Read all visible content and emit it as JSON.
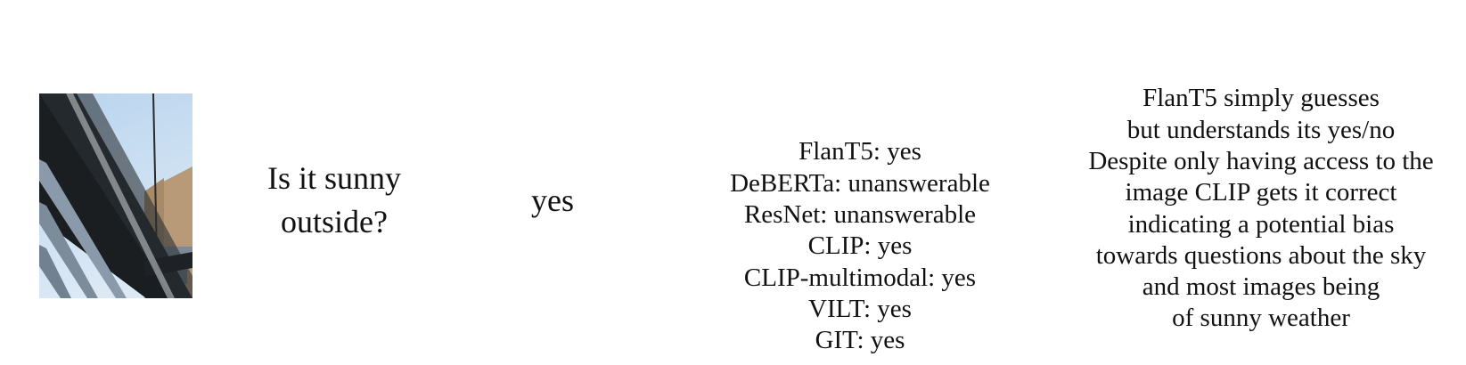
{
  "question": {
    "lines": [
      "Is it sunny",
      "outside?"
    ]
  },
  "answer": "yes",
  "predictions": [
    {
      "text": "FlanT5: yes"
    },
    {
      "text": "DeBERTa: unanswerable"
    },
    {
      "text": "ResNet: unanswerable"
    },
    {
      "text": "CLIP: yes"
    },
    {
      "text": "CLIP-multimodal: yes"
    },
    {
      "text": "VILT: yes"
    },
    {
      "text": "GIT: yes"
    }
  ],
  "explanation": {
    "lines": [
      "FlanT5 simply guesses",
      "but understands its yes/no",
      "Despite only having access to the",
      "image CLIP gets it correct",
      "indicating a potential bias",
      "towards questions about the sky",
      "and most images being",
      "of sunny weather"
    ]
  }
}
